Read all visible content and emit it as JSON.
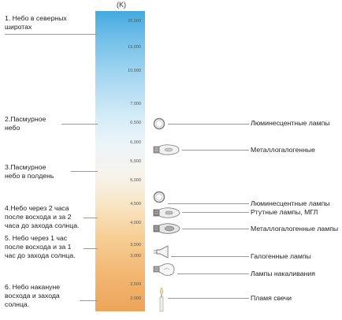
{
  "scale": {
    "unit_label": "(K)",
    "ticks": [
      "20,000",
      "15,000",
      "10,000",
      "7,000",
      "6,500",
      "6,000",
      "5,500",
      "5,000",
      "4,500",
      "4,000",
      "3,500",
      "3,000",
      "2,500",
      "2,000"
    ]
  },
  "environment": [
    {
      "text": "1. Небо  в северных\nширотах"
    },
    {
      "text": "2.Пасмурное\nнебо"
    },
    {
      "text": "3.Пасмурное\nнебо в полдень"
    },
    {
      "text": "4.Небо через 2 часа\nпосле восхода и за 2\nчаса до захода солнца."
    },
    {
      "text": "5. Небо через 1 час\nпосле восхода и за 1\nчас до захода солнца."
    },
    {
      "text": "6. Небо накануне\nвосхода и захода\nсолнца."
    }
  ],
  "lamps": [
    {
      "text": "Люминесцентные лампы",
      "icon": "ring-fluorescent-lamp-icon"
    },
    {
      "text": "Металлогалогенные",
      "icon": "metal-halide-lamp-icon"
    },
    {
      "text": "Люминесцентные лампы",
      "icon": "ring-fluorescent-lamp-icon"
    },
    {
      "text": "Ртутные лампы, МГЛ",
      "icon": "mercury-lamp-icon"
    },
    {
      "text": "Металлогалогенные лампы",
      "icon": "metal-halide-lamp-icon"
    },
    {
      "text": "Галогенные лампы",
      "icon": "halogen-reflector-lamp-icon"
    },
    {
      "text": "Лампы накаливания",
      "icon": "incandescent-bulb-icon"
    },
    {
      "text": "Пламя свечи",
      "icon": "candle-icon"
    }
  ]
}
